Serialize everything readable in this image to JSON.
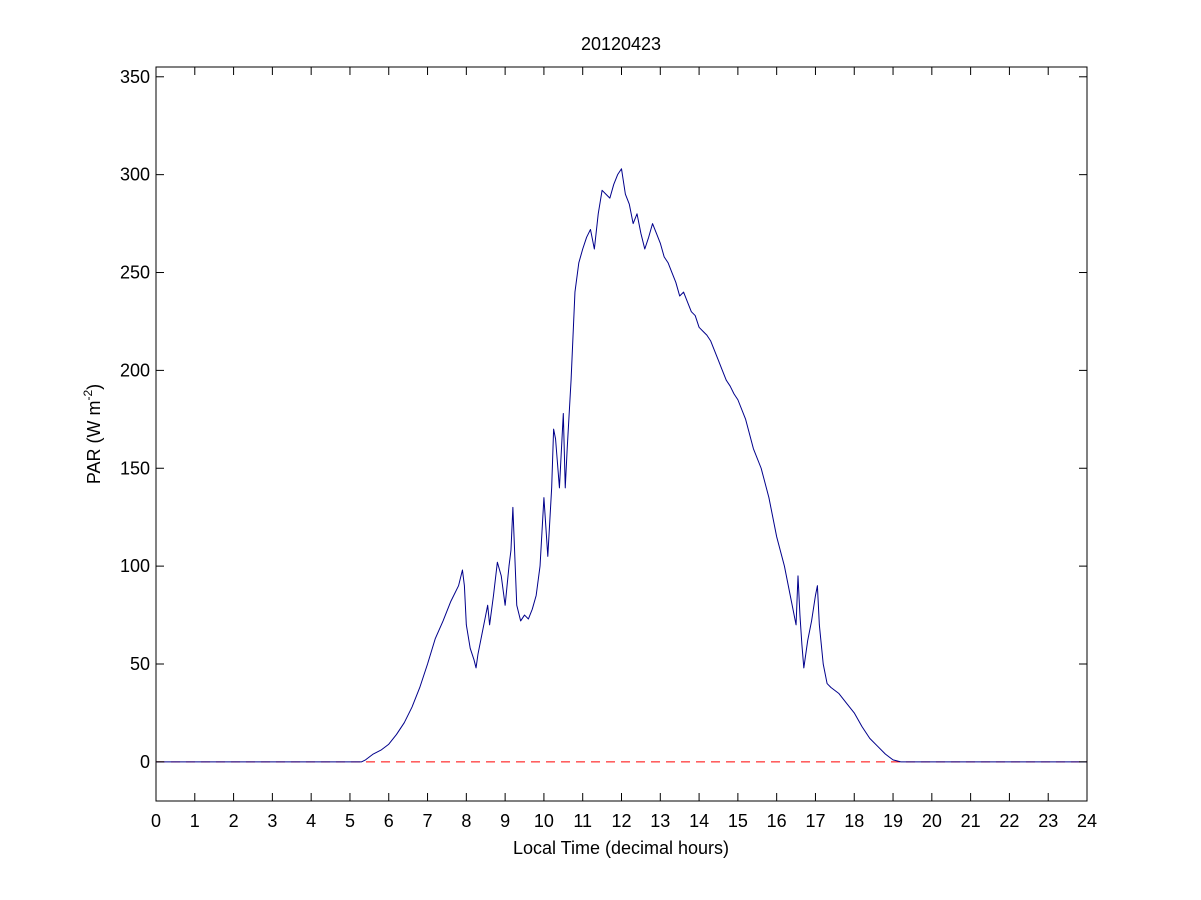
{
  "chart_data": {
    "type": "line",
    "title": "20120423",
    "xlabel": "Local Time (decimal hours)",
    "ylabel": {
      "main": "PAR (W m",
      "sup": "-2",
      "close": ")"
    },
    "xlim": [
      0,
      24
    ],
    "ylim": [
      -20,
      355
    ],
    "xticks": [
      0,
      1,
      2,
      3,
      4,
      5,
      6,
      7,
      8,
      9,
      10,
      11,
      12,
      13,
      14,
      15,
      16,
      17,
      18,
      19,
      20,
      21,
      22,
      23,
      24
    ],
    "yticks": [
      0,
      50,
      100,
      150,
      200,
      250,
      300,
      350
    ],
    "grid": false,
    "colors": {
      "series": "#00008b",
      "reference": "#ff0000",
      "axes": "#000000"
    },
    "series": [
      {
        "x": [
          0,
          5.3,
          5.4,
          5.6,
          5.8,
          6.0,
          6.2,
          6.4,
          6.6,
          6.8,
          7.0,
          7.2,
          7.4,
          7.6,
          7.8,
          7.9,
          7.95,
          8.0,
          8.1,
          8.2,
          8.25,
          8.3,
          8.4,
          8.5,
          8.55,
          8.6,
          8.7,
          8.8,
          8.9,
          9.0,
          9.05,
          9.1,
          9.15,
          9.2,
          9.3,
          9.4,
          9.5,
          9.6,
          9.7,
          9.8,
          9.9,
          10.0,
          10.05,
          10.1,
          10.2,
          10.25,
          10.3,
          10.4,
          10.5,
          10.55,
          10.6,
          10.7,
          10.8,
          10.9,
          11.0,
          11.1,
          11.2,
          11.3,
          11.4,
          11.5,
          11.6,
          11.7,
          11.8,
          11.9,
          12.0,
          12.1,
          12.2,
          12.3,
          12.4,
          12.5,
          12.6,
          12.7,
          12.8,
          12.9,
          13.0,
          13.1,
          13.2,
          13.3,
          13.4,
          13.5,
          13.6,
          13.7,
          13.8,
          13.9,
          14.0,
          14.1,
          14.2,
          14.3,
          14.4,
          14.5,
          14.6,
          14.7,
          14.8,
          14.9,
          15.0,
          15.2,
          15.4,
          15.6,
          15.8,
          16.0,
          16.2,
          16.4,
          16.5,
          16.55,
          16.6,
          16.65,
          16.7,
          16.8,
          16.9,
          17.0,
          17.05,
          17.1,
          17.2,
          17.3,
          17.4,
          17.6,
          17.8,
          18.0,
          18.2,
          18.4,
          18.6,
          18.8,
          19.0,
          19.2,
          24
        ],
        "values": [
          0,
          0,
          1,
          4,
          6,
          9,
          14,
          20,
          28,
          38,
          50,
          63,
          72,
          82,
          90,
          98,
          90,
          70,
          58,
          52,
          48,
          55,
          65,
          75,
          80,
          70,
          85,
          102,
          95,
          80,
          90,
          100,
          108,
          130,
          80,
          72,
          75,
          73,
          78,
          85,
          100,
          135,
          120,
          105,
          140,
          170,
          165,
          140,
          178,
          140,
          160,
          195,
          240,
          255,
          262,
          268,
          272,
          262,
          280,
          292,
          290,
          288,
          295,
          300,
          303,
          290,
          285,
          275,
          280,
          270,
          262,
          268,
          275,
          270,
          265,
          258,
          255,
          250,
          245,
          238,
          240,
          235,
          230,
          228,
          222,
          220,
          218,
          215,
          210,
          205,
          200,
          195,
          192,
          188,
          185,
          175,
          160,
          150,
          135,
          115,
          100,
          80,
          70,
          95,
          75,
          60,
          48,
          62,
          72,
          85,
          90,
          70,
          50,
          40,
          38,
          35,
          30,
          25,
          18,
          12,
          8,
          4,
          1,
          0,
          0
        ]
      }
    ],
    "reference_line": {
      "y": 0,
      "style": "dashed"
    }
  }
}
